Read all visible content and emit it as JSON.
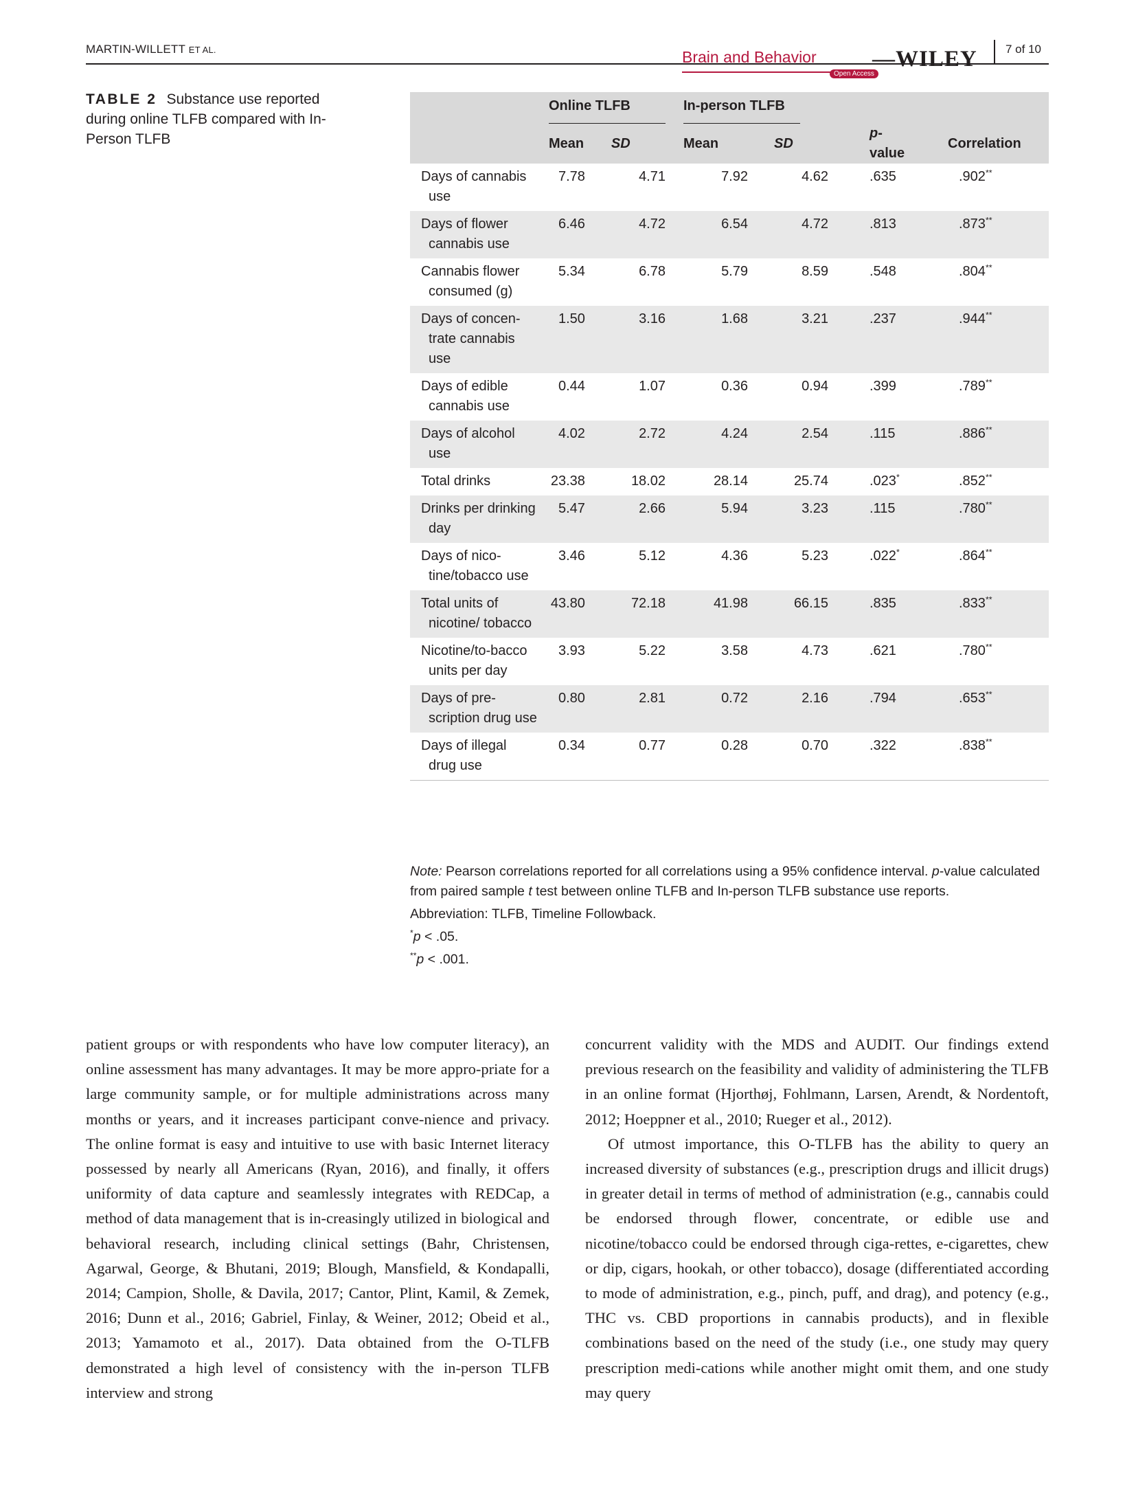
{
  "header": {
    "author": "MARTIN-WILLETT",
    "author_suffix": "ET AL.",
    "journal": "Brain and Behavior",
    "open_access": "Open Access",
    "publisher": "WILEY",
    "publisher_dash": "—",
    "page": "7 of 10"
  },
  "caption": {
    "label": "TABLE 2",
    "text": "Substance use reported during online TLFB compared with In-Person TLFB"
  },
  "table": {
    "groups": [
      "Online TLFB",
      "In-person TLFB"
    ],
    "headers": {
      "mean": "Mean",
      "sd": "SD",
      "p_italic": "p",
      "p_rest": "-value",
      "correlation": "Correlation"
    },
    "rows": [
      {
        "label": "Days of cannabis use",
        "m1": "7.78",
        "sd1": "4.71",
        "m2": "7.92",
        "sd2": "4.62",
        "p": ".635",
        "r": ".902",
        "r_sig": "**",
        "p_sig": ""
      },
      {
        "label": "Days of flower cannabis use",
        "m1": "6.46",
        "sd1": "4.72",
        "m2": "6.54",
        "sd2": "4.72",
        "p": ".813",
        "r": ".873",
        "r_sig": "**",
        "p_sig": ""
      },
      {
        "label": "Cannabis flower consumed (g)",
        "m1": "5.34",
        "sd1": "6.78",
        "m2": "5.79",
        "sd2": "8.59",
        "p": ".548",
        "r": ".804",
        "r_sig": "**",
        "p_sig": ""
      },
      {
        "label": "Days of concen-trate cannabis use",
        "m1": "1.50",
        "sd1": "3.16",
        "m2": "1.68",
        "sd2": "3.21",
        "p": ".237",
        "r": ".944",
        "r_sig": "**",
        "p_sig": ""
      },
      {
        "label": "Days of edible cannabis use",
        "m1": "0.44",
        "sd1": "1.07",
        "m2": "0.36",
        "sd2": "0.94",
        "p": ".399",
        "r": ".789",
        "r_sig": "**",
        "p_sig": ""
      },
      {
        "label": "Days of alcohol use",
        "m1": "4.02",
        "sd1": "2.72",
        "m2": "4.24",
        "sd2": "2.54",
        "p": ".115",
        "r": ".886",
        "r_sig": "**",
        "p_sig": ""
      },
      {
        "label": "Total drinks",
        "m1": "23.38",
        "sd1": "18.02",
        "m2": "28.14",
        "sd2": "25.74",
        "p": ".023",
        "r": ".852",
        "r_sig": "**",
        "p_sig": "*"
      },
      {
        "label": "Drinks per drinking day",
        "m1": "5.47",
        "sd1": "2.66",
        "m2": "5.94",
        "sd2": "3.23",
        "p": ".115",
        "r": ".780",
        "r_sig": "**",
        "p_sig": ""
      },
      {
        "label": "Days of nico-tine/tobacco use",
        "m1": "3.46",
        "sd1": "5.12",
        "m2": "4.36",
        "sd2": "5.23",
        "p": ".022",
        "r": ".864",
        "r_sig": "**",
        "p_sig": "*"
      },
      {
        "label": "Total units of nicotine/ tobacco",
        "m1": "43.80",
        "sd1": "72.18",
        "m2": "41.98",
        "sd2": "66.15",
        "p": ".835",
        "r": ".833",
        "r_sig": "**",
        "p_sig": ""
      },
      {
        "label": "Nicotine/to-bacco units per day",
        "m1": "3.93",
        "sd1": "5.22",
        "m2": "3.58",
        "sd2": "4.73",
        "p": ".621",
        "r": ".780",
        "r_sig": "**",
        "p_sig": ""
      },
      {
        "label": "Days of pre-scription drug use",
        "m1": "0.80",
        "sd1": "2.81",
        "m2": "0.72",
        "sd2": "2.16",
        "p": ".794",
        "r": ".653",
        "r_sig": "**",
        "p_sig": ""
      },
      {
        "label": "Days of illegal drug use",
        "m1": "0.34",
        "sd1": "0.77",
        "m2": "0.28",
        "sd2": "0.70",
        "p": ".322",
        "r": ".838",
        "r_sig": "**",
        "p_sig": ""
      }
    ]
  },
  "notes": {
    "note_label": "Note:",
    "note_part1": " Pearson correlations reported for all correlations using a 95% confidence interval. ",
    "note_p": "p",
    "note_part2": "-value calculated from paired sample ",
    "note_t": "t",
    "note_part3": " test between online TLFB and In-person TLFB substance use reports.",
    "abbreviation": "Abbreviation: TLFB, Timeline Followback.",
    "sig1_star": "*",
    "sig1_p": "p",
    "sig1_rest": " < .05.",
    "sig2_star": "**",
    "sig2_p": "p",
    "sig2_rest": " < .001."
  },
  "body": {
    "left_col": "patient groups or with respondents who have low computer literacy), an online assessment has many advantages. It may be more appro-priate for a large community sample, or for multiple administrations across many months or years, and it increases participant conve-nience and privacy. The online format is easy and intuitive to use with basic Internet literacy possessed by nearly all Americans (Ryan, 2016), and finally, it offers uniformity of data capture and seamlessly integrates with REDCap, a method of data management that is in-creasingly utilized in biological and behavioral research, including clinical settings (Bahr, Christensen, Agarwal, George, & Bhutani, 2019; Blough, Mansfield, & Kondapalli, 2014; Campion, Sholle, & Davila, 2017; Cantor, Plint, Kamil, & Zemek, 2016; Dunn et al., 2016; Gabriel, Finlay, & Weiner, 2012; Obeid et al., 2013; Yamamoto et al., 2017). Data obtained from the O-TLFB demonstrated a high level of consistency with the in-person TLFB interview and strong",
    "right_p1": "concurrent validity with the MDS and AUDIT. Our findings extend previous research on the feasibility and validity of administering the TLFB in an online format (Hjorthøj, Fohlmann, Larsen, Arendt, & Nordentoft, 2012; Hoeppner et al., 2010; Rueger et al., 2012).",
    "right_p2": "Of utmost importance, this O-TLFB has the ability to query an increased diversity of substances (e.g., prescription drugs and illicit drugs) in greater detail in terms of method of administration (e.g., cannabis could be endorsed through flower, concentrate, or edible use and nicotine/tobacco could be endorsed through ciga-rettes, e-cigarettes, chew or dip, cigars, hookah, or other tobacco), dosage (differentiated according to mode of administration, e.g., pinch, puff, and drag), and potency (e.g., THC vs. CBD proportions in cannabis products), and in flexible combinations based on the need of the study (i.e., one study may query prescription medi-cations while another might omit them, and one study may query"
  }
}
